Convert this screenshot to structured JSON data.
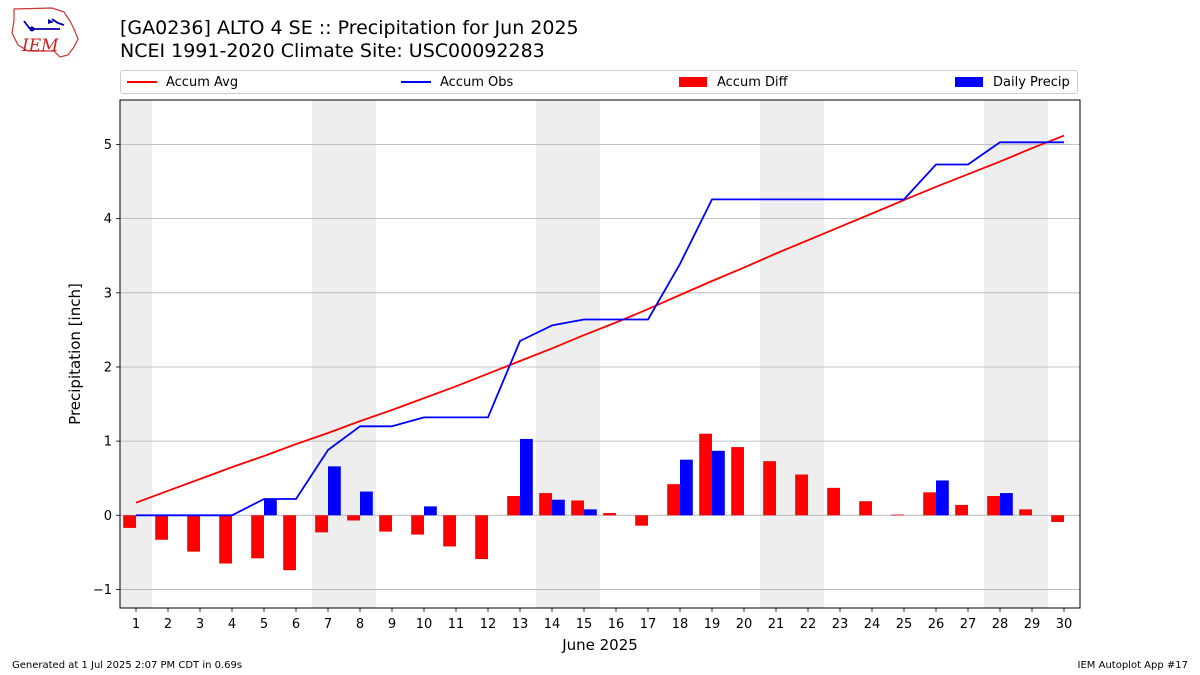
{
  "header": {
    "title": "[GA0236] ALTO 4 SE :: Precipitation for Jun 2025",
    "subtitle": "NCEI 1991-2020 Climate Site: USC00092283",
    "logo_text": "IEM"
  },
  "legend": {
    "accum_avg": "Accum Avg",
    "accum_obs": "Accum Obs",
    "accum_diff": "Accum Diff",
    "daily_precip": "Daily Precip"
  },
  "footer": {
    "generated": "Generated at 1 Jul 2025 2:07 PM CDT in 0.69s",
    "app": "IEM Autoplot App #17"
  },
  "colors": {
    "avg": "#ff0000",
    "obs": "#0000ff",
    "diff": "#ff0000",
    "daily": "#0000ff",
    "weekend_shade": "#eeeeee",
    "grid": "#b0b0b0"
  },
  "chart_data": {
    "type": "bar",
    "xlabel": "June 2025",
    "ylabel": "Precipitation [inch]",
    "ylim": [
      -1.25,
      5.6
    ],
    "yticks": [
      -1,
      0,
      1,
      2,
      3,
      4,
      5
    ],
    "grid": "horizontal",
    "legend_position": "top",
    "x": [
      1,
      2,
      3,
      4,
      5,
      6,
      7,
      8,
      9,
      10,
      11,
      12,
      13,
      14,
      15,
      16,
      17,
      18,
      19,
      20,
      21,
      22,
      23,
      24,
      25,
      26,
      27,
      28,
      29,
      30
    ],
    "shaded_days": [
      1,
      7,
      8,
      14,
      15,
      21,
      22,
      28,
      29
    ],
    "series": [
      {
        "name": "Accum Avg",
        "kind": "line",
        "values": [
          0.17,
          0.33,
          0.49,
          0.65,
          0.8,
          0.96,
          1.11,
          1.27,
          1.42,
          1.58,
          1.74,
          1.91,
          2.08,
          2.25,
          2.43,
          2.6,
          2.78,
          2.97,
          3.16,
          3.34,
          3.53,
          3.71,
          3.89,
          4.07,
          4.25,
          4.43,
          4.6,
          4.77,
          4.95,
          5.12
        ]
      },
      {
        "name": "Accum Obs",
        "kind": "line",
        "values": [
          0.0,
          0.0,
          0.0,
          0.0,
          0.22,
          0.22,
          0.88,
          1.2,
          1.2,
          1.32,
          1.32,
          1.32,
          2.35,
          2.56,
          2.64,
          2.64,
          2.64,
          3.39,
          4.26,
          4.26,
          4.26,
          4.26,
          4.26,
          4.26,
          4.26,
          4.73,
          4.73,
          5.03,
          5.03,
          5.03
        ]
      },
      {
        "name": "Accum Diff",
        "kind": "bar",
        "values": [
          -0.17,
          -0.33,
          -0.49,
          -0.65,
          -0.58,
          -0.74,
          -0.23,
          -0.07,
          -0.22,
          -0.26,
          -0.42,
          -0.59,
          0.26,
          0.3,
          0.2,
          0.03,
          -0.14,
          0.42,
          1.1,
          0.92,
          0.73,
          0.55,
          0.37,
          0.19,
          0.01,
          0.31,
          0.14,
          0.26,
          0.08,
          -0.09
        ]
      },
      {
        "name": "Daily Precip",
        "kind": "bar",
        "values": [
          0,
          0,
          0,
          0,
          0.22,
          0,
          0.66,
          0.32,
          0,
          0.12,
          0,
          0,
          1.03,
          0.21,
          0.08,
          0,
          0,
          0.75,
          0.87,
          0,
          0,
          0,
          0,
          0,
          0,
          0.47,
          0,
          0.3,
          0,
          0
        ]
      }
    ]
  }
}
